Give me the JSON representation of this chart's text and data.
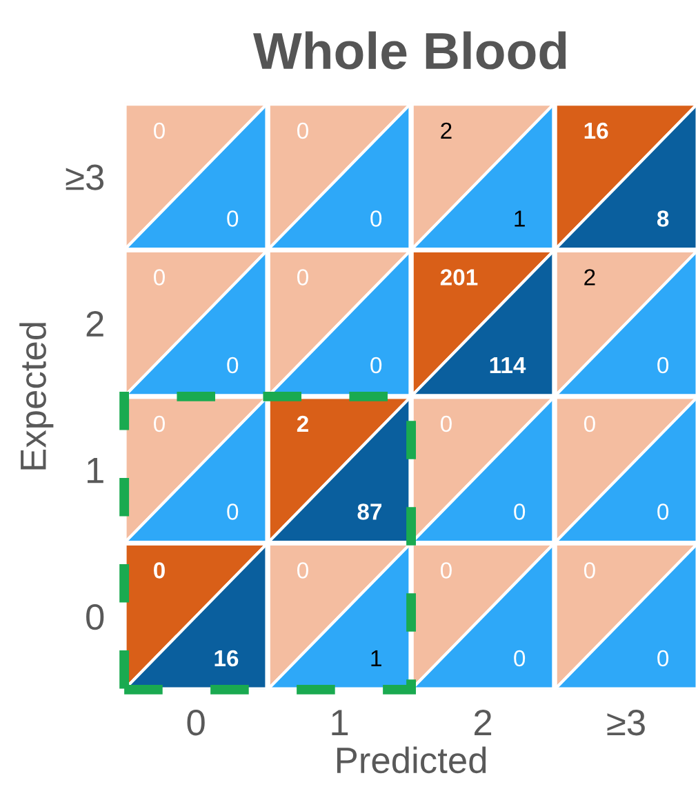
{
  "chart_data": [
    {
      "type": "heatmap",
      "title": "Whole Blood",
      "xlabel": "Predicted",
      "ylabel": "Expected",
      "categories": [
        "0",
        "1",
        "2",
        "≥3"
      ],
      "y_categories": [
        "≥3",
        "2",
        "1",
        "0"
      ],
      "colors": [
        "#f4bda0",
        "#d95f18"
      ],
      "cells": [
        [
          0,
          0,
          2,
          16
        ],
        [
          0,
          0,
          201,
          2
        ],
        [
          0,
          2,
          0,
          0
        ],
        [
          0,
          0,
          0,
          0
        ]
      ],
      "data_labels": true
    },
    {
      "type": "heatmap",
      "categories": [
        "0",
        "1",
        "2",
        "≥3"
      ],
      "y_categories": [
        "≥3",
        "2",
        "1",
        "0"
      ],
      "colors": [
        "#2ea8f8",
        "#0a5f9e"
      ],
      "cells": [
        [
          0,
          0,
          1,
          8
        ],
        [
          0,
          0,
          114,
          0
        ],
        [
          0,
          87,
          0,
          0
        ],
        [
          16,
          1,
          0,
          0
        ]
      ],
      "tick_labels": false,
      "data_labels": true
    }
  ]
}
